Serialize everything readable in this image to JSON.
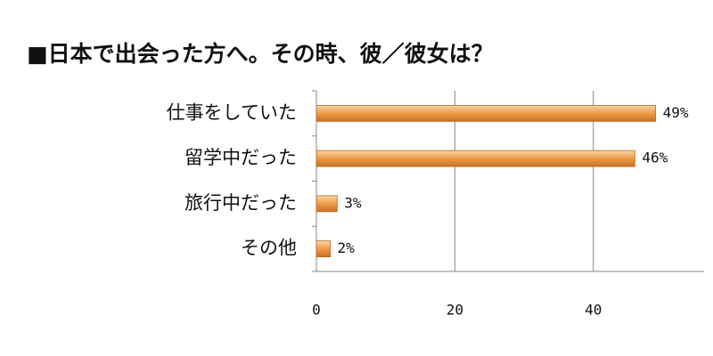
{
  "chart_data": {
    "type": "bar",
    "orientation": "horizontal",
    "title": "■日本で出会った方へ。その時、彼／彼女は？",
    "categories": [
      "仕事をしていた",
      "留学中だった",
      "旅行中だった",
      "その他"
    ],
    "values": [
      49,
      46,
      3,
      2
    ],
    "value_labels": [
      "49%",
      "46%",
      "3%",
      "2%"
    ],
    "color": "#f0a050",
    "xlim": [
      0,
      56
    ],
    "xticks": [
      0,
      20,
      40
    ],
    "grid": true
  }
}
